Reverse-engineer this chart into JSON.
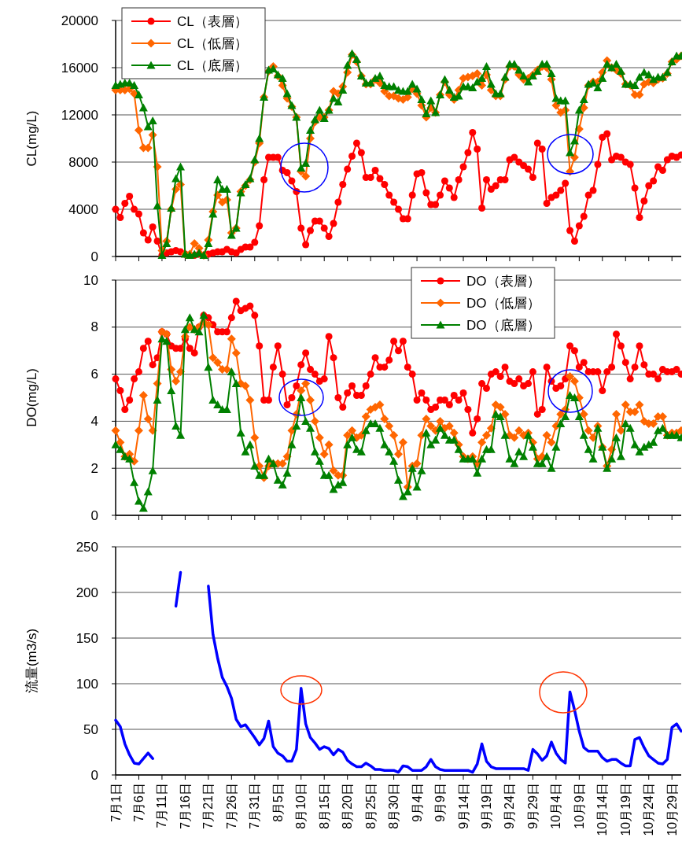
{
  "chart_data": [
    {
      "type": "line",
      "ylabel": "CL(mg/L)",
      "categories": [
        null,
        null,
        null,
        null,
        null,
        null,
        null,
        null,
        null,
        null,
        null,
        null,
        null,
        null,
        null,
        null,
        null,
        null,
        null,
        null,
        null,
        null,
        null,
        null,
        null,
        null,
        null,
        null,
        null,
        null,
        null,
        null,
        null,
        null,
        null,
        null,
        null,
        null,
        null,
        null,
        null,
        null,
        null,
        null,
        null,
        null,
        null,
        null,
        null,
        null,
        null,
        null,
        null,
        null,
        null,
        null,
        null,
        null,
        null,
        null,
        null,
        null,
        null,
        null,
        null,
        null,
        null,
        null,
        null,
        null,
        null,
        null,
        null,
        null,
        null,
        null,
        null,
        null,
        null,
        null,
        null,
        null,
        null,
        null,
        null,
        null,
        null,
        null,
        null,
        null,
        null,
        null,
        null,
        null,
        null,
        null,
        null,
        null,
        null,
        null,
        null,
        null,
        null,
        null,
        null,
        null,
        null,
        null,
        null,
        null,
        null,
        null,
        null,
        null,
        null,
        null,
        null,
        null,
        null,
        null,
        null,
        null,
        null
      ],
      "series": [
        {
          "name": "CL（表層）",
          "color": "#ff0000",
          "marker": "circle",
          "values": [
            4000,
            3300,
            4500,
            5100,
            4000,
            3600,
            2000,
            1400,
            2500,
            1300,
            100,
            300,
            400,
            500,
            400,
            200,
            100,
            100,
            200,
            100,
            200,
            300,
            400,
            400,
            600,
            400,
            300,
            600,
            800,
            800,
            1200,
            2600,
            6500,
            8400,
            8400,
            8400,
            7300,
            7100,
            6400,
            5500,
            2400,
            1000,
            2200,
            3000,
            3000,
            2400,
            1700,
            2800,
            4600,
            6100,
            7400,
            8500,
            9600,
            8800,
            6700,
            6700,
            7300,
            6600,
            6100,
            5200,
            4600,
            4000,
            3200,
            3200,
            5200,
            7000,
            7100,
            5400,
            4400,
            4400,
            5200,
            6400,
            5800,
            5000,
            6500,
            7600,
            8800,
            10500,
            9100,
            4100,
            6500,
            5700,
            6000,
            6500,
            6500,
            8200,
            8400,
            8000,
            7700,
            7400,
            6700,
            9600,
            9100,
            4500,
            5000,
            5200,
            5600,
            6200,
            2200,
            1300,
            2600,
            3400,
            5200,
            5600,
            7800,
            10100,
            10400,
            8200,
            8500,
            8400,
            8000,
            7800,
            5800,
            3300,
            4700,
            6000,
            6400,
            7600,
            7300,
            8200,
            8500,
            8400,
            8600
          ]
        },
        {
          "name": "CL（低層）",
          "color": "#ff6600",
          "marker": "diamond",
          "values": [
            14100,
            14100,
            14100,
            14200,
            13800,
            10700,
            9200,
            9200,
            10300,
            7600,
            500,
            1300,
            4000,
            5700,
            6100,
            200,
            200,
            1100,
            700,
            100,
            1400,
            3800,
            5200,
            4600,
            4800,
            2000,
            2400,
            5500,
            6000,
            6500,
            8000,
            9600,
            13500,
            15700,
            16100,
            15300,
            14500,
            13400,
            12700,
            11800,
            7200,
            6800,
            10000,
            11400,
            11800,
            11800,
            12400,
            14000,
            13800,
            14400,
            15600,
            17100,
            16500,
            15300,
            14600,
            14600,
            15000,
            14700,
            14000,
            13600,
            13600,
            13400,
            13300,
            13500,
            14200,
            13800,
            12800,
            11800,
            12600,
            12200,
            13700,
            14800,
            13700,
            13300,
            14100,
            15100,
            15200,
            15300,
            15500,
            14500,
            15400,
            14100,
            13600,
            13600,
            15000,
            16100,
            16100,
            15400,
            15000,
            15100,
            15400,
            15800,
            16100,
            16000,
            15000,
            12800,
            12200,
            12400,
            7200,
            8400,
            10800,
            12600,
            14500,
            14800,
            14800,
            15600,
            16600,
            16000,
            15800,
            15500,
            14600,
            14500,
            13700,
            13700,
            14600,
            14800,
            14700,
            15000,
            15100,
            15500,
            16500,
            16700,
            17000
          ]
        },
        {
          "name": "CL（底層）",
          "color": "#008000",
          "marker": "triangle",
          "values": [
            14500,
            14600,
            14700,
            14700,
            14500,
            13700,
            12600,
            11000,
            11500,
            4300,
            100,
            1100,
            4100,
            6600,
            7600,
            200,
            100,
            200,
            300,
            100,
            1100,
            3600,
            6500,
            5700,
            5700,
            1800,
            2400,
            5400,
            6100,
            6600,
            8200,
            10000,
            13500,
            15800,
            15900,
            15400,
            15100,
            13800,
            12800,
            11800,
            7500,
            7900,
            10700,
            11600,
            12400,
            11700,
            12400,
            13400,
            13100,
            14100,
            16200,
            17200,
            16700,
            15300,
            14700,
            14700,
            15100,
            15300,
            14500,
            14400,
            14400,
            14100,
            14000,
            14000,
            14600,
            14200,
            13300,
            12100,
            13200,
            12200,
            13700,
            15000,
            14100,
            13500,
            13600,
            14400,
            14400,
            14300,
            14800,
            15100,
            16100,
            14600,
            13800,
            13800,
            15200,
            16300,
            16300,
            15800,
            15300,
            14800,
            15300,
            15700,
            16300,
            16300,
            15500,
            13400,
            13200,
            13200,
            8800,
            9800,
            12400,
            13300,
            14600,
            14700,
            14300,
            15100,
            16300,
            16000,
            16300,
            15700,
            14600,
            14600,
            14500,
            15200,
            15600,
            15400,
            15000,
            15200,
            15200,
            15600,
            16500,
            17000,
            17000
          ]
        }
      ],
      "ylim": [
        0,
        20000
      ],
      "yticks": [
        0,
        4000,
        8000,
        12000,
        16000,
        20000
      ],
      "grid": "y",
      "legend": "top left",
      "tick_labels": "y"
    },
    {
      "type": "line",
      "ylabel": "DO(mg/L)",
      "categories": [
        null,
        null,
        null,
        null,
        null,
        null,
        null,
        null,
        null,
        null,
        null,
        null,
        null,
        null,
        null,
        null,
        null,
        null,
        null,
        null,
        null,
        null,
        null,
        null,
        null,
        null,
        null,
        null,
        null,
        null,
        null,
        null,
        null,
        null,
        null,
        null,
        null,
        null,
        null,
        null,
        null,
        null,
        null,
        null,
        null,
        null,
        null,
        null,
        null,
        null,
        null,
        null,
        null,
        null,
        null,
        null,
        null,
        null,
        null,
        null,
        null,
        null,
        null,
        null,
        null,
        null,
        null,
        null,
        null,
        null,
        null,
        null,
        null,
        null,
        null,
        null,
        null,
        null,
        null,
        null,
        null,
        null,
        null,
        null,
        null,
        null,
        null,
        null,
        null,
        null,
        null,
        null,
        null,
        null,
        null,
        null,
        null,
        null,
        null,
        null,
        null,
        null,
        null,
        null,
        null,
        null,
        null,
        null,
        null,
        null,
        null,
        null,
        null,
        null,
        null,
        null,
        null,
        null,
        null,
        null,
        null,
        null,
        null
      ],
      "series": [
        {
          "name": "DO（表層）",
          "color": "#ff0000",
          "marker": "circle",
          "values": [
            5.8,
            5.3,
            4.5,
            4.9,
            5.8,
            6.1,
            7.1,
            7.4,
            6.4,
            6.7,
            7.8,
            7.7,
            7.2,
            7.1,
            7.1,
            7.5,
            7.1,
            6.9,
            8.0,
            8.5,
            8.4,
            8.1,
            7.8,
            7.8,
            7.8,
            8.4,
            9.1,
            8.7,
            8.8,
            8.9,
            8.5,
            7.2,
            4.9,
            4.9,
            6.3,
            7.2,
            6.0,
            4.7,
            5.0,
            5.5,
            6.4,
            6.9,
            6.2,
            6.0,
            5.7,
            5.8,
            7.6,
            6.7,
            5.0,
            4.6,
            5.2,
            5.5,
            5.1,
            5.1,
            5.5,
            6.0,
            6.7,
            6.3,
            6.3,
            6.6,
            7.4,
            7.0,
            7.4,
            6.3,
            6.0,
            4.9,
            5.2,
            4.9,
            4.5,
            4.6,
            4.9,
            4.9,
            4.7,
            5.1,
            4.9,
            5.2,
            4.5,
            3.5,
            4.1,
            5.6,
            5.4,
            6.0,
            6.1,
            5.9,
            6.3,
            5.7,
            5.6,
            5.8,
            5.5,
            5.6,
            6.1,
            4.3,
            4.5,
            6.3,
            5.7,
            5.4,
            5.5,
            5.8,
            7.2,
            7.0,
            6.3,
            6.5,
            6.1,
            6.1,
            6.1,
            5.3,
            6.1,
            6.3,
            7.7,
            7.2,
            6.5,
            5.8,
            6.3,
            7.2,
            6.4,
            6.0,
            6.0,
            5.8,
            6.2,
            6.1,
            6.1,
            6.2,
            6.0
          ]
        },
        {
          "name": "DO（低層）",
          "color": "#ff6600",
          "marker": "diamond",
          "values": [
            3.6,
            3.1,
            2.5,
            2.6,
            2.3,
            3.6,
            5.1,
            4.1,
            3.6,
            5.6,
            7.8,
            7.7,
            6.2,
            5.7,
            6.1,
            7.6,
            8.0,
            7.9,
            8.0,
            8.2,
            8.1,
            6.7,
            6.5,
            6.2,
            6.2,
            7.5,
            6.9,
            5.6,
            5.5,
            4.9,
            3.3,
            2.1,
            1.6,
            2.1,
            2.2,
            2.2,
            2.2,
            2.5,
            3.6,
            4.3,
            5.3,
            5.6,
            4.9,
            4.0,
            3.3,
            2.6,
            3.0,
            1.9,
            1.7,
            1.7,
            3.4,
            3.6,
            3.3,
            3.4,
            4.2,
            4.5,
            4.6,
            4.7,
            4.1,
            3.8,
            3.4,
            2.6,
            3.1,
            1.2,
            2.1,
            2.2,
            3.4,
            4.1,
            3.8,
            3.6,
            4.0,
            3.7,
            3.8,
            3.5,
            3.0,
            2.5,
            2.4,
            2.5,
            2.2,
            3.1,
            3.4,
            3.7,
            4.7,
            4.6,
            4.3,
            3.4,
            3.3,
            3.6,
            3.4,
            3.5,
            3.1,
            2.4,
            2.5,
            3.4,
            3.1,
            3.8,
            4.3,
            4.5,
            5.9,
            5.7,
            5.0,
            4.3,
            3.6,
            3.3,
            3.8,
            2.9,
            2.1,
            2.8,
            4.3,
            3.6,
            4.7,
            4.4,
            4.4,
            4.7,
            4.0,
            3.9,
            3.9,
            4.2,
            4.2,
            3.4,
            3.5,
            3.5,
            3.6
          ]
        },
        {
          "name": "DO（底層）",
          "color": "#008000",
          "marker": "triangle",
          "values": [
            3.0,
            2.8,
            2.5,
            2.4,
            1.4,
            0.6,
            0.3,
            1.0,
            1.9,
            4.9,
            7.5,
            7.4,
            5.3,
            3.8,
            3.4,
            7.9,
            8.4,
            7.9,
            7.8,
            8.5,
            6.3,
            4.9,
            4.7,
            4.5,
            4.5,
            6.1,
            5.6,
            3.5,
            2.7,
            3.0,
            2.1,
            1.7,
            1.7,
            2.4,
            2.2,
            1.5,
            1.3,
            1.8,
            3.0,
            3.8,
            5.0,
            4.0,
            3.7,
            2.7,
            2.3,
            1.7,
            1.7,
            1.1,
            1.3,
            1.4,
            3.0,
            3.3,
            2.8,
            2.7,
            3.6,
            3.9,
            3.9,
            3.7,
            3.0,
            2.7,
            2.3,
            1.5,
            0.8,
            1.0,
            2.0,
            1.2,
            1.9,
            3.5,
            3.0,
            3.2,
            3.7,
            3.4,
            3.2,
            3.2,
            2.8,
            2.4,
            2.4,
            2.4,
            1.8,
            2.4,
            2.8,
            2.8,
            4.3,
            4.2,
            3.4,
            2.4,
            2.2,
            2.7,
            2.5,
            3.4,
            2.9,
            2.2,
            2.2,
            2.5,
            2.0,
            2.9,
            3.9,
            4.2,
            5.1,
            5.0,
            4.2,
            3.4,
            2.8,
            2.4,
            3.7,
            2.9,
            2.0,
            2.4,
            3.3,
            2.5,
            3.9,
            3.7,
            3.0,
            2.7,
            2.9,
            3.0,
            3.1,
            3.6,
            3.7,
            3.4,
            3.4,
            3.4,
            3.3
          ]
        }
      ],
      "ylim": [
        0,
        10
      ],
      "yticks": [
        0,
        2,
        4,
        6,
        8,
        10
      ],
      "grid": "y",
      "legend": "top right",
      "tick_labels": "y"
    },
    {
      "type": "line",
      "ylabel": "流量(m3/s)",
      "categories": [
        "7月1日",
        null,
        null,
        null,
        null,
        "7月6日",
        null,
        null,
        null,
        null,
        "7月11日",
        null,
        null,
        null,
        null,
        "7月16日",
        null,
        null,
        null,
        null,
        "7月21日",
        null,
        null,
        null,
        null,
        "7月26日",
        null,
        null,
        null,
        null,
        "7月31日",
        null,
        null,
        null,
        null,
        "8月5日",
        null,
        null,
        null,
        null,
        "8月10日",
        null,
        null,
        null,
        null,
        "8月15日",
        null,
        null,
        null,
        null,
        "8月20日",
        null,
        null,
        null,
        null,
        "8月25日",
        null,
        null,
        null,
        null,
        "8月30日",
        null,
        null,
        null,
        null,
        "9月4日",
        null,
        null,
        null,
        null,
        "9月9日",
        null,
        null,
        null,
        null,
        "9月14日",
        null,
        null,
        null,
        null,
        "9月19日",
        null,
        null,
        null,
        null,
        "9月24日",
        null,
        null,
        null,
        null,
        "9月29日",
        null,
        null,
        null,
        null,
        "10月4日",
        null,
        null,
        null,
        null,
        "10月9日",
        null,
        null,
        null,
        null,
        "10月14日",
        null,
        null,
        null,
        null,
        "10月19日",
        null,
        null,
        null,
        null,
        "10月24日",
        null,
        null,
        null,
        null,
        "10月29日",
        null,
        null
      ],
      "series": [
        {
          "color": "#0000ff",
          "values": [
            60,
            53,
            34,
            22,
            13,
            12,
            18,
            24,
            18,
            null,
            null,
            null,
            null,
            185,
            222,
            null,
            null,
            null,
            null,
            null,
            207,
            154,
            128,
            107,
            97,
            84,
            61,
            53,
            55,
            48,
            41,
            33,
            40,
            59,
            31,
            24,
            21,
            15,
            15,
            28,
            95,
            56,
            41,
            35,
            28,
            31,
            29,
            22,
            28,
            25,
            16,
            12,
            9,
            9,
            13,
            10,
            6,
            6,
            5,
            5,
            5,
            3,
            10,
            9,
            5,
            5,
            5,
            9,
            17,
            9,
            6,
            5,
            5,
            5,
            5,
            5,
            5,
            3,
            12,
            34,
            15,
            9,
            7,
            7,
            7,
            7,
            7,
            7,
            7,
            5,
            28,
            23,
            16,
            21,
            36,
            24,
            17,
            13,
            91,
            71,
            48,
            30,
            26,
            26,
            26,
            19,
            15,
            17,
            17,
            13,
            10,
            10,
            39,
            41,
            30,
            21,
            17,
            13,
            12,
            17,
            52,
            56,
            48
          ]
        }
      ],
      "ylim": [
        0,
        250
      ],
      "yticks": [
        0,
        50,
        100,
        150,
        200,
        250
      ],
      "grid": "y"
    }
  ]
}
